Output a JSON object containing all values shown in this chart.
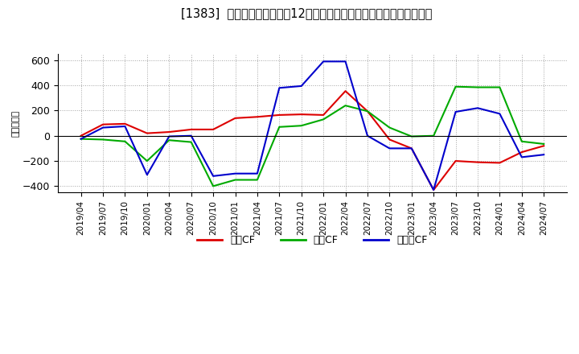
{
  "title": "[1383]  キャッシュフローの12か月移動合計の対前年同期増減額の推移",
  "ylabel": "（百万円）",
  "background_color": "#ffffff",
  "plot_bg_color": "#ffffff",
  "grid_color": "#999999",
  "ylim": [
    -450,
    650
  ],
  "yticks": [
    -400,
    -200,
    0,
    200,
    400,
    600
  ],
  "x_labels": [
    "2019/04",
    "2019/07",
    "2019/10",
    "2020/01",
    "2020/04",
    "2020/07",
    "2020/10",
    "2021/01",
    "2021/04",
    "2021/07",
    "2021/10",
    "2022/01",
    "2022/04",
    "2022/07",
    "2022/10",
    "2023/01",
    "2023/04",
    "2023/07",
    "2023/10",
    "2024/01",
    "2024/04",
    "2024/07"
  ],
  "series": {
    "営業CF": {
      "color": "#dd0000",
      "values": [
        0,
        90,
        95,
        20,
        30,
        50,
        50,
        140,
        150,
        165,
        170,
        165,
        355,
        195,
        -30,
        -100,
        -430,
        -200,
        -210,
        -215,
        -130,
        -80
      ]
    },
    "投資CF": {
      "color": "#00aa00",
      "values": [
        -25,
        -30,
        -45,
        -200,
        -35,
        -50,
        -400,
        -350,
        -350,
        70,
        80,
        130,
        240,
        195,
        65,
        -5,
        0,
        390,
        385,
        385,
        -45,
        -65
      ]
    },
    "フリーCF": {
      "color": "#0000cc",
      "values": [
        -25,
        65,
        75,
        -310,
        -5,
        0,
        -320,
        -300,
        -300,
        380,
        395,
        590,
        590,
        0,
        -100,
        -100,
        -430,
        190,
        220,
        175,
        -170,
        -150
      ]
    }
  },
  "legend_labels": [
    "営業CF",
    "投資CF",
    "フリーCF"
  ],
  "legend_colors": [
    "#dd0000",
    "#00aa00",
    "#0000cc"
  ]
}
